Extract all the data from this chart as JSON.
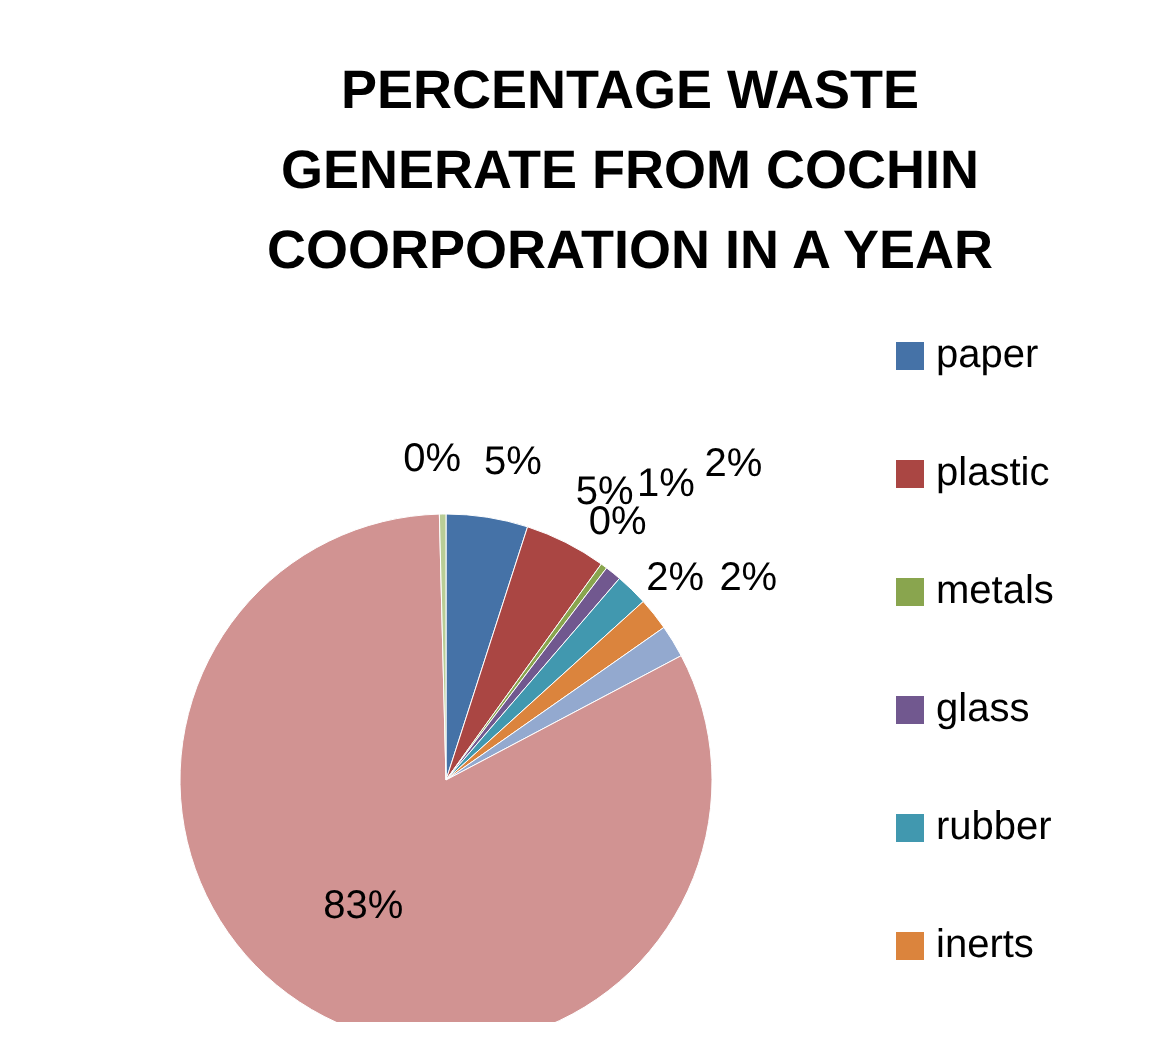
{
  "chart_data": {
    "type": "pie",
    "title": "PERCENTAGE WASTE GENERATE FROM COCHIN COORPORATION IN A YEAR",
    "categories": [
      "paper",
      "plastic",
      "metals",
      "glass",
      "rubber",
      "inerts",
      null,
      null,
      null
    ],
    "values": [
      5,
      5,
      0.4,
      1,
      2,
      2,
      2,
      83,
      0.4
    ],
    "value_labels": [
      "5%",
      "5%",
      "0%",
      "1%",
      "2%",
      "2%",
      "2%",
      "83%",
      "0%"
    ],
    "colors": [
      "#4572a7",
      "#aa4643",
      "#89a54e",
      "#71588f",
      "#4198af",
      "#db843d",
      "#93a9cf",
      "#d19392",
      "#b9cd96"
    ],
    "legend": "right"
  }
}
